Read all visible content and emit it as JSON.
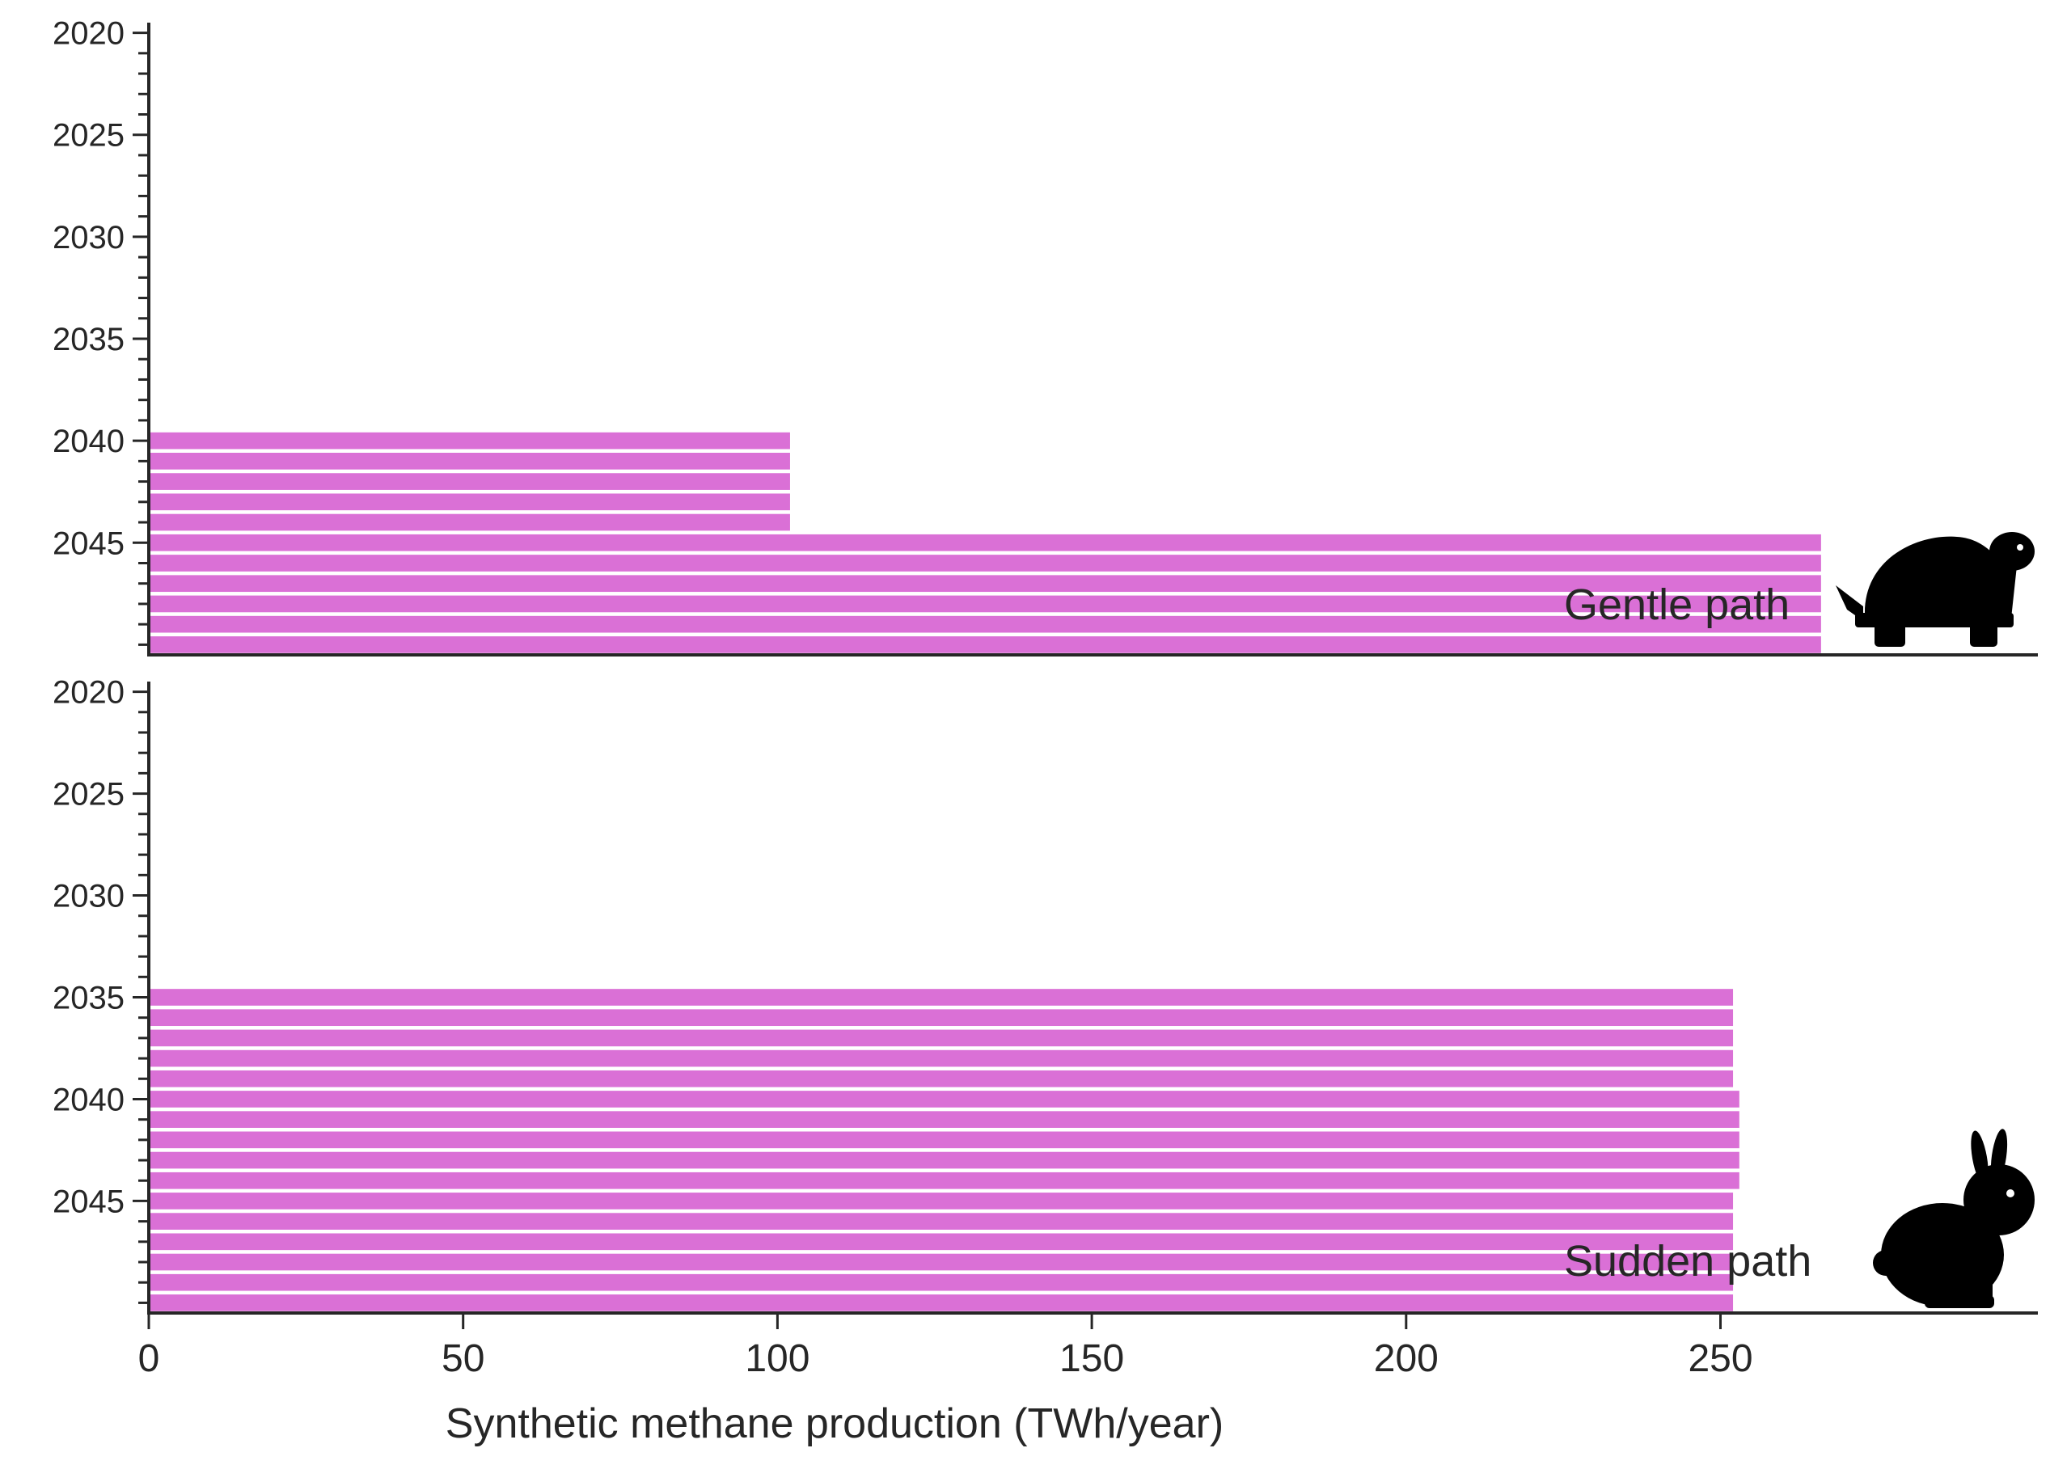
{
  "colors": {
    "bar": "#da70d6",
    "axis": "#262626",
    "icon": "#000000",
    "background": "#ffffff"
  },
  "chart_data": {
    "type": "bar",
    "orientation": "horizontal",
    "xlabel": "Synthetic methane production (TWh/year)",
    "x_ticks": [
      0,
      50,
      100,
      150,
      200,
      250
    ],
    "xlim": [
      0,
      300
    ],
    "y_ticks": [
      2020,
      2025,
      2030,
      2035,
      2040,
      2045
    ],
    "ylim": [
      2019.5,
      2050.5
    ],
    "grid": false,
    "panels": [
      {
        "label": "Gentle path",
        "icon": "turtle-icon",
        "years": [
          2020,
          2021,
          2022,
          2023,
          2024,
          2025,
          2026,
          2027,
          2028,
          2029,
          2030,
          2031,
          2032,
          2033,
          2034,
          2035,
          2036,
          2037,
          2038,
          2039,
          2040,
          2041,
          2042,
          2043,
          2044,
          2045,
          2046,
          2047,
          2048,
          2049,
          2050
        ],
        "values": [
          0,
          0,
          0,
          0,
          0,
          0,
          0,
          0,
          0,
          0,
          0,
          0,
          0,
          0,
          0,
          0,
          0,
          0,
          0,
          0,
          102,
          102,
          102,
          102,
          102,
          266,
          266,
          266,
          266,
          266,
          266
        ]
      },
      {
        "label": "Sudden path",
        "icon": "rabbit-icon",
        "years": [
          2020,
          2021,
          2022,
          2023,
          2024,
          2025,
          2026,
          2027,
          2028,
          2029,
          2030,
          2031,
          2032,
          2033,
          2034,
          2035,
          2036,
          2037,
          2038,
          2039,
          2040,
          2041,
          2042,
          2043,
          2044,
          2045,
          2046,
          2047,
          2048,
          2049,
          2050
        ],
        "values": [
          0,
          0,
          0,
          0,
          0,
          0,
          0,
          0,
          0,
          0,
          0,
          0,
          0,
          0,
          0,
          252,
          252,
          252,
          252,
          252,
          253,
          253,
          253,
          253,
          253,
          252,
          252,
          252,
          252,
          252,
          252
        ]
      }
    ]
  }
}
